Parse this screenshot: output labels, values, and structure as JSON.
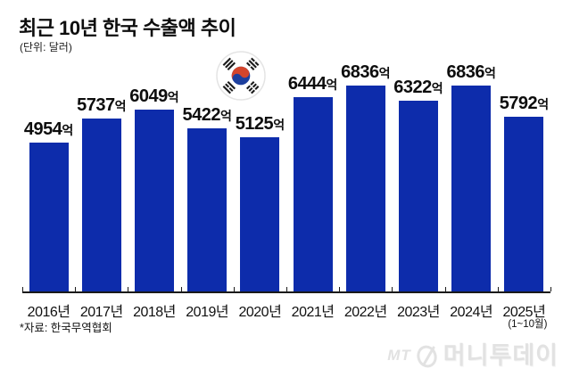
{
  "title": "최근 10년 한국 수출액 추이",
  "unit_label": "(단위: 달러)",
  "source": "*자료: 한국무역협회",
  "watermark": {
    "mt": "MT",
    "name": "머니투데이"
  },
  "flag_icon": {
    "name": "south-korea-flag",
    "taeguk_red": "#d4452c",
    "taeguk_blue": "#1d3f9e",
    "trigram_color": "#1a1a1a",
    "background": "#ffffff",
    "border": "#e4e4e4"
  },
  "chart_data": {
    "type": "bar",
    "title": "최근 10년 한국 수출액 추이",
    "unit": "달러",
    "categories": [
      "2016년",
      "2017년",
      "2018년",
      "2019년",
      "2020년",
      "2021년",
      "2022년",
      "2023년",
      "2024년",
      "2025년"
    ],
    "values": [
      4954,
      5737,
      6049,
      5422,
      5125,
      6444,
      6836,
      6322,
      6836,
      5792
    ],
    "value_suffix": "억",
    "last_category_note": "(1~10월)",
    "bar_color": "#0d2cab",
    "ylim": [
      0,
      6836
    ],
    "grid": false,
    "legend": false,
    "value_labels": true
  }
}
